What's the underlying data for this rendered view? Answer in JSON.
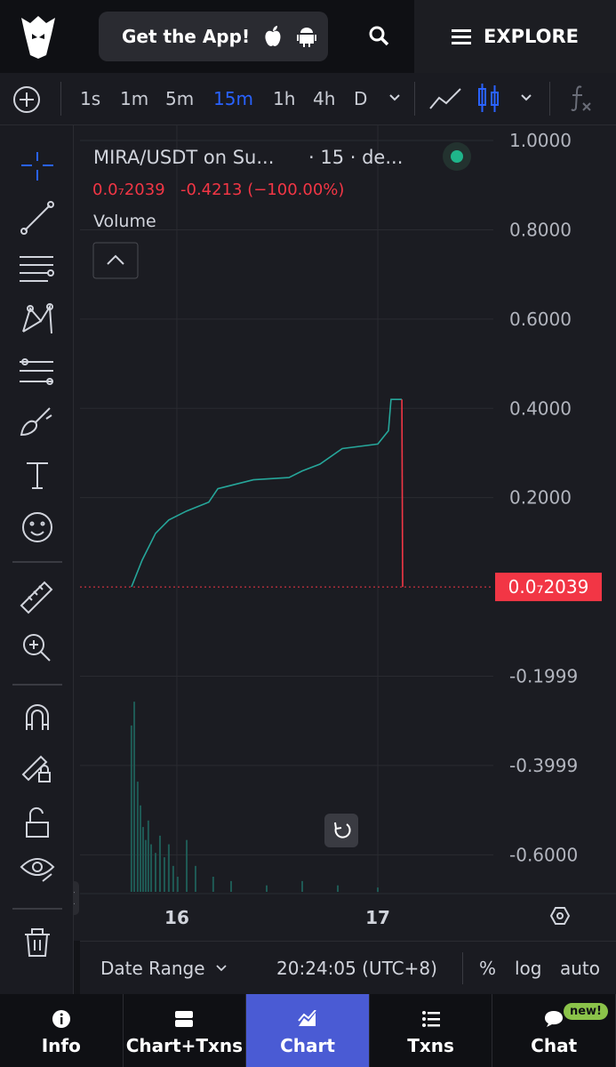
{
  "header": {
    "app_button": "Get the App!",
    "explore": "EXPLORE"
  },
  "intervals": [
    "1s",
    "1m",
    "5m",
    "15m",
    "1h",
    "4h",
    "D"
  ],
  "active_interval_index": 3,
  "chart_data": {
    "type": "line",
    "title": "MIRA/USDT on Su...",
    "subtitle": "· 15 · de...",
    "last_price": 2.039e-08,
    "last_price_label": "0.0₇2039",
    "change": "-0.4213 (−100.00%)",
    "volume_label": "Volume",
    "series": [
      {
        "color": "#26a69a",
        "x": [
          15.774,
          15.827,
          15.894,
          15.96,
          16.049,
          16.159,
          16.204,
          16.381,
          16.558,
          16.624,
          16.712,
          16.823,
          17.0,
          17.053,
          17.066,
          17.12
        ],
        "values": [
          0,
          0.06,
          0.12,
          0.15,
          0.17,
          0.19,
          0.22,
          0.24,
          0.245,
          0.26,
          0.275,
          0.31,
          0.32,
          0.35,
          0.42,
          0.42
        ]
      },
      {
        "color": "#f23645",
        "x": [
          17.12,
          17.124
        ],
        "values": [
          0.42,
          0
        ]
      }
    ],
    "volume": {
      "color": "#1f5a55",
      "x": [
        15.774,
        15.788,
        15.805,
        15.819,
        15.832,
        15.845,
        15.858,
        15.872,
        15.894,
        15.916,
        15.938,
        15.96,
        15.982,
        16.004,
        16.049,
        16.093,
        16.181,
        16.27,
        16.447,
        16.624,
        16.801,
        17.0
      ],
      "values": [
        77,
        88,
        51,
        40,
        30,
        24,
        33,
        22,
        18,
        26,
        16,
        22,
        12,
        7,
        24,
        12,
        7,
        5,
        3,
        5,
        3,
        2
      ],
      "ylim": [
        0,
        100
      ]
    },
    "xlim": [
      15.518,
      17.575
    ],
    "xticks": [
      16,
      17
    ],
    "ylim": [
      -0.687,
      1.02
    ],
    "yticks": [
      {
        "value": 1,
        "label": "1.0000"
      },
      {
        "value": 0.8,
        "label": "0.8000"
      },
      {
        "value": 0.6,
        "label": "0.6000"
      },
      {
        "value": 0.4,
        "label": "0.4000"
      },
      {
        "value": 0.2,
        "label": "0.2000"
      },
      {
        "value": -0.1999,
        "label": "-0.1999"
      },
      {
        "value": -0.3999,
        "label": "-0.3999"
      },
      {
        "value": -0.6,
        "label": "-0.6000"
      }
    ],
    "grid": true
  },
  "bottom_bar": {
    "date_range": "Date Range",
    "time": "20:24:05 (UTC+8)",
    "percent": "%",
    "log": "log",
    "auto": "auto"
  },
  "nav": [
    "Info",
    "Chart+Txns",
    "Chart",
    "Txns",
    "Chat"
  ],
  "nav_active_index": 2,
  "new_badge": "new!"
}
